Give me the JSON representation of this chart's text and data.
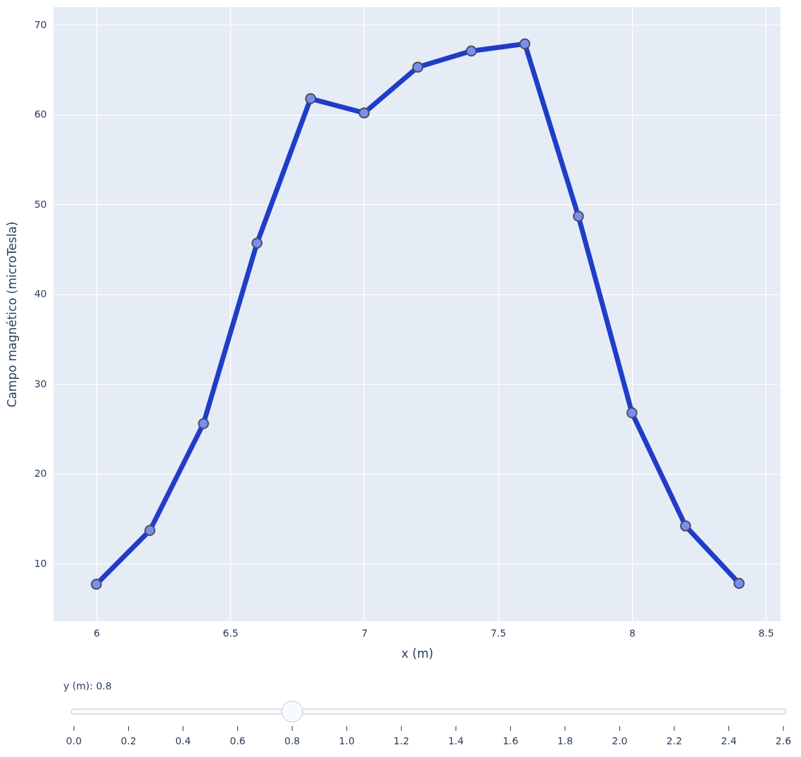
{
  "chart_data": {
    "type": "line",
    "xlabel": "x (m)",
    "ylabel": "Campo magnético (microTesla)",
    "x": [
      6,
      6.2,
      6.4,
      6.6,
      6.8,
      7,
      7.2,
      7.4,
      7.6,
      7.8,
      8,
      8.2,
      8.4
    ],
    "series": [
      {
        "color": "#1f3dc8",
        "values": [
          7.7,
          13.7,
          25.6,
          45.7,
          61.8,
          60.2,
          65.3,
          67.1,
          67.9,
          48.7,
          26.8,
          14.2,
          7.8
        ]
      }
    ],
    "xlim": [
      5.84,
      8.555
    ],
    "xticks": [
      6,
      6.5,
      7,
      7.5,
      8,
      8.5
    ],
    "ylim": [
      3.6,
      72
    ],
    "yticks": [
      10,
      20,
      30,
      40,
      50,
      60,
      70
    ],
    "grid": true,
    "marker": "circle",
    "line_style": "solid",
    "annotations": [
      "y (m): 0.8",
      "0.0",
      "0.2",
      "0.4",
      "0.6",
      "0.8",
      "1.0",
      "1.2",
      "1.4",
      "1.6",
      "1.8",
      "2.0",
      "2.2",
      "2.4",
      "2.6"
    ]
  }
}
